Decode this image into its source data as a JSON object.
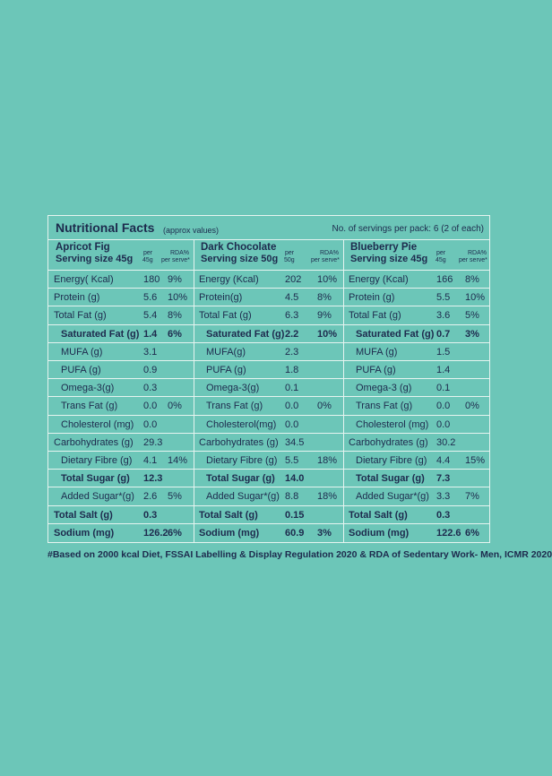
{
  "header": {
    "title": "Nutritional Facts",
    "subtitle": "(approx values)",
    "servings": "No. of servings per pack: 6 (2 of each)"
  },
  "products": [
    {
      "name": "Apricot Fig",
      "serving": "Serving size 45g",
      "per": "per",
      "per_unit": "45g",
      "rda": "RDA%",
      "rda_unit": "per serve*",
      "rows": [
        [
          "Energy( Kcal)",
          "180",
          "9%"
        ],
        [
          "Protein (g)",
          "5.6",
          "10%"
        ],
        [
          "Total Fat (g)",
          "5.4",
          "8%"
        ],
        [
          "Saturated Fat (g)",
          "1.4",
          "6%"
        ],
        [
          "MUFA (g)",
          "3.1"
        ],
        [
          "PUFA (g)",
          "0.9"
        ],
        [
          "Omega-3(g)",
          "0.3"
        ],
        [
          "Trans Fat (g)",
          "0.0",
          "0%"
        ],
        [
          "Cholesterol (mg)",
          "0.0"
        ],
        [
          "Carbohydrates (g)",
          "29.3"
        ],
        [
          "Dietary Fibre (g)",
          "4.1",
          "14%"
        ],
        [
          "Total Sugar (g)",
          "12.3"
        ],
        [
          "Added Sugar*(g)",
          "2.6",
          "5%"
        ],
        [
          "Total Salt (g)",
          "0.3"
        ],
        [
          "Sodium (mg)",
          "126.2",
          "6%"
        ]
      ]
    },
    {
      "name": "Dark Chocolate",
      "serving": "Serving size 50g",
      "per": "per",
      "per_unit": "50g",
      "rda": "RDA%",
      "rda_unit": "per serve*",
      "rows": [
        [
          "Energy (Kcal)",
          "202",
          "10%"
        ],
        [
          "Protein(g)",
          "4.5",
          "8%"
        ],
        [
          "Total Fat (g)",
          "6.3",
          "9%"
        ],
        [
          "Saturated Fat (g)",
          "2.2",
          "10%"
        ],
        [
          "MUFA(g)",
          "2.3"
        ],
        [
          "PUFA (g)",
          "1.8"
        ],
        [
          "Omega-3(g)",
          "0.1"
        ],
        [
          "Trans Fat (g)",
          "0.0",
          "0%"
        ],
        [
          "Cholesterol(mg)",
          "0.0"
        ],
        [
          "Carbohydrates (g)",
          "34.5"
        ],
        [
          "Dietary Fibre (g)",
          "5.5",
          "18%"
        ],
        [
          "Total Sugar (g)",
          "14.0"
        ],
        [
          "Added Sugar*(g)",
          "8.8",
          "18%"
        ],
        [
          "Total Salt (g)",
          "0.15"
        ],
        [
          "Sodium (mg)",
          "60.9",
          "3%"
        ]
      ]
    },
    {
      "name": "Blueberry Pie",
      "serving": "Serving size 45g",
      "per": "per",
      "per_unit": "45g",
      "rda": "RDA%",
      "rda_unit": "per serve*",
      "rows": [
        [
          "Energy (Kcal)",
          "166",
          "8%"
        ],
        [
          "Protein (g)",
          "5.5",
          "10%"
        ],
        [
          "Total Fat (g)",
          "3.6",
          "5%"
        ],
        [
          "Saturated Fat (g)",
          "0.7",
          "3%"
        ],
        [
          "MUFA (g)",
          "1.5"
        ],
        [
          "PUFA (g)",
          "1.4"
        ],
        [
          "Omega-3 (g)",
          "0.1"
        ],
        [
          "Trans Fat (g)",
          "0.0",
          "0%"
        ],
        [
          "Cholesterol (mg)",
          "0.0"
        ],
        [
          "Carbohydrates (g)",
          "30.2"
        ],
        [
          "Dietary Fibre (g)",
          "4.4",
          "15%"
        ],
        [
          "Total Sugar (g)",
          "7.3"
        ],
        [
          "Added Sugar*(g)",
          "3.3",
          "7%"
        ],
        [
          "Total Salt (g)",
          "0.3"
        ],
        [
          "Sodium (mg)",
          "122.6",
          "6%"
        ]
      ]
    }
  ],
  "footnote": "#Based on 2000 kcal Diet, FSSAI Labelling & Display Regulation 2020 & RDA of Sedentary Work- Men, ICMR 2020"
}
